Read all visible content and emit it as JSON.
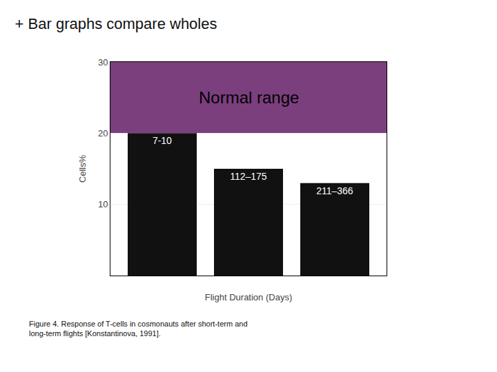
{
  "chart_data": {
    "type": "bar",
    "title": "+ Bar graphs compare wholes",
    "categories": [
      "7-10",
      "112–175",
      "211–366"
    ],
    "values": [
      20.0,
      15.0,
      13.0
    ],
    "color": "#111111",
    "xlabel": "Flight Duration (Days)",
    "ylabel": "Cells%",
    "ylim": [
      0,
      30
    ],
    "yticks": [
      10,
      20,
      30
    ],
    "grid": true,
    "tick_labels": "y",
    "normal_range": {
      "low": 20.0,
      "high": 30.0,
      "label": "Normal range",
      "color": "#7b3f7e"
    },
    "caption": "Figure 4. Response of T-cells in cosmonauts after short-term and\nlong-term flights [Konstantinova, 1991]."
  }
}
